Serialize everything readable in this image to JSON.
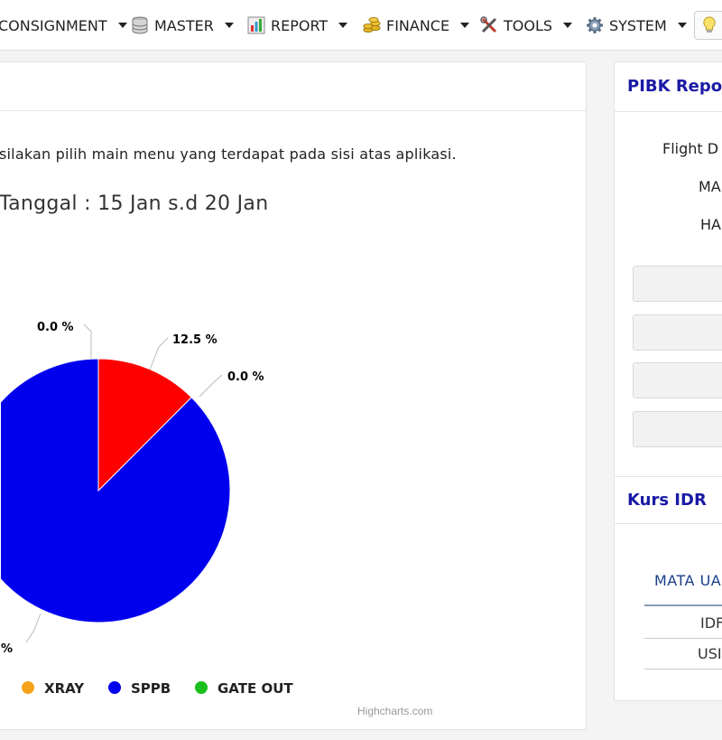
{
  "navbar": {
    "items": [
      {
        "label": "CONSIGNMENT",
        "icon": "none"
      },
      {
        "label": "MASTER",
        "icon": "database-icon"
      },
      {
        "label": "REPORT",
        "icon": "bar-chart-icon"
      },
      {
        "label": "FINANCE",
        "icon": "coins-icon"
      },
      {
        "label": "TOOLS",
        "icon": "tools-icon"
      },
      {
        "label": "SYSTEM",
        "icon": "gear-icon"
      }
    ],
    "idea_icon": "lightbulb-icon"
  },
  "main": {
    "welcome_text": "silakan pilih main menu yang terdapat pada sisi atas aplikasi.",
    "chart_title": "Tanggal : 15 Jan s.d 20 Jan",
    "credit": "Highcharts.com"
  },
  "chart_data": {
    "type": "pie",
    "title": "Tanggal : 15 Jan s.d 20 Jan",
    "slices": [
      {
        "name": "XRAY",
        "value": 0.0,
        "label": "0.0 %",
        "color": "#f7a21b"
      },
      {
        "name": "",
        "value": 12.5,
        "label": "12.5 %",
        "color": "#ff0000"
      },
      {
        "name": "GATE OUT",
        "value": 0.0,
        "label": "0.0 %",
        "color": "#1bbf1b"
      },
      {
        "name": "SPPB",
        "value": 87.5,
        "label": "%",
        "color": "#0000ee"
      }
    ],
    "legend": [
      {
        "name": "XRAY",
        "color": "#f7a21b"
      },
      {
        "name": "SPPB",
        "color": "#0000ee"
      },
      {
        "name": "GATE OUT",
        "color": "#1bbf1b"
      }
    ],
    "legend_position": "bottom"
  },
  "side": {
    "pibk_title": "PIBK Repo",
    "labels": [
      "Flight D",
      "MA",
      "HA"
    ],
    "kurs_title": "Kurs IDR",
    "kurs_header": "MATA UA",
    "kurs_rows": [
      "IDF",
      "USI"
    ]
  }
}
